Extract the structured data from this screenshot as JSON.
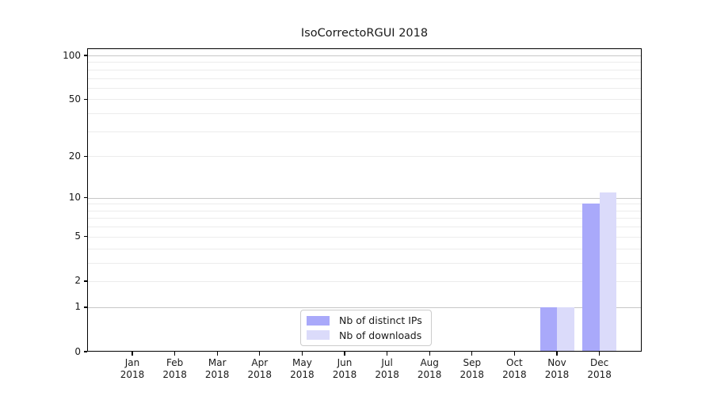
{
  "window": {
    "background": "#ffffff"
  },
  "chart_data": {
    "type": "bar",
    "title": "IsoCorrectoRGUI 2018",
    "categories": [
      "Jan 2018",
      "Feb 2018",
      "Mar 2018",
      "Apr 2018",
      "May 2018",
      "Jun 2018",
      "Jul 2018",
      "Aug 2018",
      "Sep 2018",
      "Oct 2018",
      "Nov 2018",
      "Dec 2018"
    ],
    "series": [
      {
        "name": "Nb of distinct IPs",
        "color": "#a9a9fa",
        "values": [
          0,
          0,
          0,
          0,
          0,
          0,
          0,
          0,
          0,
          0,
          1,
          9
        ]
      },
      {
        "name": "Nb of downloads",
        "color": "#dbdbfa",
        "values": [
          0,
          0,
          0,
          0,
          0,
          0,
          0,
          0,
          0,
          0,
          1,
          11
        ]
      }
    ],
    "xlabel": "",
    "ylabel": "",
    "yscale": "log1p",
    "ylim": [
      0,
      112
    ],
    "yticks": [
      0,
      1,
      2,
      5,
      10,
      20,
      50,
      100
    ],
    "major_gridlines": [
      1,
      10,
      100
    ],
    "minor_gridlines": [
      2,
      3,
      4,
      5,
      6,
      7,
      8,
      9,
      20,
      30,
      40,
      50,
      60,
      70,
      80,
      90
    ],
    "grid": true,
    "legend_position": "lower center"
  },
  "colors": {
    "major_gridline": "#c7c7c7",
    "minor_gridline": "#ececec",
    "axis": "#000000",
    "text": "#1a1a1a",
    "legend_border": "#cccccc"
  }
}
